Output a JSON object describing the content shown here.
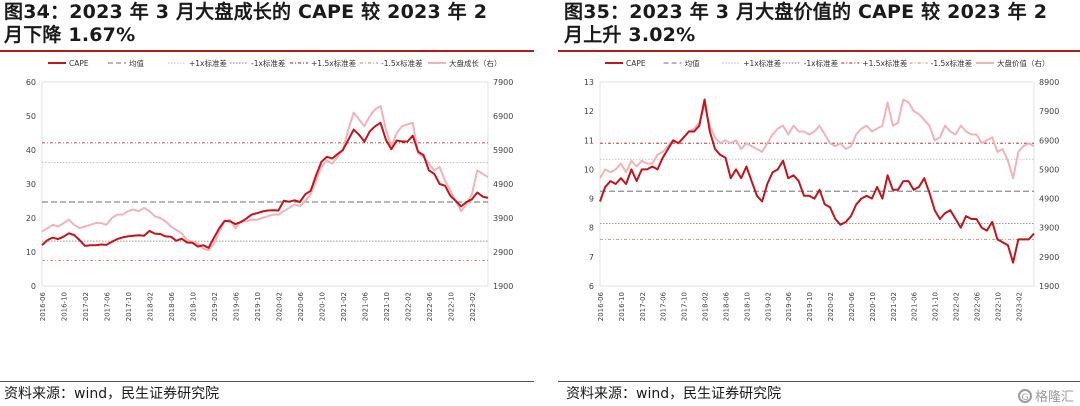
{
  "source_label": "资料来源：wind，民生证券研究院",
  "watermark": "格隆汇",
  "chart_data": [
    {
      "type": "line",
      "title": "图34：2023 年 3 月大盘成长的 CAPE 较 2023 年 2 月下降 1.67%",
      "legend": [
        "CAPE",
        "均值",
        "+1x标准差",
        "-1x标准差",
        "+1.5x标准差",
        "-1.5x标准差",
        "大盘成长（右）"
      ],
      "ylim_left": [
        0,
        60
      ],
      "ylim_right": [
        1900,
        7900
      ],
      "yticks_left": [
        "0",
        "10",
        "20",
        "30",
        "40",
        "50",
        "60"
      ],
      "yticks_right": [
        "1900",
        "2900",
        "3900",
        "4900",
        "5900",
        "6900",
        "7900"
      ],
      "x_tick_labels": [
        "2016-06",
        "2016-10",
        "2017-02",
        "2017-06",
        "2017-10",
        "2018-02",
        "2018-06",
        "2018-10",
        "2019-02",
        "2019-06",
        "2019-10",
        "2020-02",
        "2020-06",
        "2020-10",
        "2021-02",
        "2021-06",
        "2021-10",
        "2022-02",
        "2022-06",
        "2022-10",
        "2023-02"
      ],
      "x_start": "2016-06",
      "reference_lines": {
        "mean": 24.7,
        "plus_1sd": 36.3,
        "minus_1sd": 13.2,
        "plus_1_5sd": 42.1,
        "minus_1_5sd": 7.5
      },
      "series": [
        {
          "name": "CAPE",
          "axis": "left",
          "values": [
            12.0,
            13.5,
            14.2,
            13.8,
            14.5,
            15.5,
            15.0,
            13.5,
            11.8,
            12.0,
            12.0,
            12.2,
            12.1,
            13.0,
            13.8,
            14.3,
            14.6,
            14.8,
            14.9,
            14.8,
            16.2,
            15.4,
            15.3,
            14.6,
            14.5,
            13.3,
            13.9,
            12.8,
            12.7,
            11.6,
            12.0,
            11.2,
            14.2,
            17.0,
            19.2,
            19.0,
            18.2,
            18.8,
            19.8,
            21.0,
            21.4,
            21.9,
            22.2,
            22.3,
            22.2,
            25.1,
            24.8,
            25.2,
            24.7,
            27.0,
            28.0,
            32.5,
            36.5,
            38.0,
            37.5,
            38.8,
            40.0,
            43.0,
            46.0,
            44.5,
            42.5,
            45.5,
            47.0,
            48.0,
            43.0,
            40.2,
            42.8,
            42.5,
            42.5,
            44.2,
            39.5,
            38.5,
            34.0,
            33.0,
            30.0,
            29.5,
            26.5,
            25.0,
            23.4,
            24.7,
            25.5,
            27.5,
            26.3,
            25.9
          ]
        },
        {
          "name": "大盘成长（右）",
          "axis": "right",
          "values": [
            3500,
            3600,
            3700,
            3650,
            3750,
            3850,
            3700,
            3600,
            3650,
            3700,
            3750,
            3750,
            3700,
            3900,
            4000,
            4000,
            4100,
            4150,
            4100,
            4200,
            4100,
            3950,
            3900,
            3800,
            3650,
            3550,
            3450,
            3250,
            3200,
            3150,
            3000,
            2950,
            3150,
            3500,
            3800,
            3850,
            3600,
            3800,
            3800,
            3850,
            3850,
            3900,
            3950,
            4000,
            4000,
            4100,
            4200,
            4300,
            4250,
            4400,
            4600,
            5000,
            5400,
            5600,
            5500,
            5700,
            5900,
            6500,
            7000,
            6800,
            6600,
            6900,
            7100,
            7200,
            6500,
            6000,
            6400,
            6600,
            6650,
            6700,
            5800,
            5700,
            5500,
            5300,
            5400,
            5000,
            4700,
            4400,
            4100,
            4300,
            4600,
            5300,
            5200,
            5100
          ]
        }
      ]
    },
    {
      "type": "line",
      "title": "图35：2023 年 3 月大盘价值的 CAPE 较 2023 年 2 月上升 3.02%",
      "legend": [
        "CAPE",
        "均值",
        "+1x标准差",
        "-1x标准差",
        "+1.5x标准差",
        "-1.5x标准差",
        "大盘价值（右）"
      ],
      "ylim_left": [
        6,
        13
      ],
      "ylim_right": [
        1900,
        8900
      ],
      "yticks_left": [
        "6",
        "7",
        "8",
        "9",
        "10",
        "11",
        "12",
        "13"
      ],
      "yticks_right": [
        "1900",
        "2900",
        "3900",
        "4900",
        "5900",
        "6900",
        "7900",
        "8900"
      ],
      "x_tick_labels": [
        "2016-06",
        "2016-10",
        "2017-02",
        "2017-06",
        "2017-10",
        "2018-02",
        "2018-06",
        "2018-10",
        "2019-02",
        "2019-06",
        "2019-10",
        "2020-02",
        "2020-06",
        "2020-10",
        "2021-02",
        "2021-06",
        "2021-10",
        "2022-02",
        "2022-06",
        "2022-10",
        "2023-02"
      ],
      "x_start": "2016-06",
      "reference_lines": {
        "mean": 9.25,
        "plus_1sd": 10.35,
        "minus_1sd": 8.15,
        "plus_1_5sd": 10.9,
        "minus_1_5sd": 7.6
      },
      "series": [
        {
          "name": "CAPE",
          "axis": "left",
          "values": [
            8.9,
            9.4,
            9.6,
            9.5,
            9.7,
            9.5,
            10.0,
            9.6,
            10.0,
            10.0,
            10.1,
            10.0,
            10.4,
            10.7,
            11.0,
            10.9,
            11.1,
            11.3,
            11.3,
            11.5,
            12.4,
            11.3,
            10.7,
            10.5,
            10.4,
            9.7,
            10.0,
            9.7,
            10.1,
            9.6,
            9.1,
            8.9,
            9.5,
            9.9,
            10.0,
            10.3,
            9.7,
            9.8,
            9.6,
            9.1,
            9.1,
            9.0,
            9.3,
            8.8,
            8.7,
            8.3,
            8.1,
            8.2,
            8.4,
            8.8,
            9.0,
            9.1,
            9.0,
            9.4,
            9.0,
            9.8,
            9.3,
            9.3,
            9.6,
            9.6,
            9.3,
            9.4,
            9.7,
            9.2,
            8.6,
            8.3,
            8.5,
            8.6,
            8.3,
            8.0,
            8.4,
            8.3,
            8.3,
            8.0,
            7.9,
            8.2,
            7.6,
            7.5,
            7.4,
            6.8,
            7.6,
            7.6,
            7.6,
            7.8
          ]
        },
        {
          "name": "大盘价值（右）",
          "axis": "right",
          "values": [
            5600,
            5900,
            5800,
            5900,
            6100,
            5800,
            6200,
            6000,
            6200,
            6100,
            6100,
            6400,
            6500,
            6700,
            6900,
            6800,
            7000,
            7200,
            7300,
            7500,
            8100,
            7400,
            7000,
            6800,
            6900,
            6800,
            6900,
            6600,
            6800,
            6700,
            6600,
            6500,
            6800,
            7100,
            7300,
            7400,
            7100,
            7400,
            7200,
            7200,
            7100,
            7200,
            7400,
            7100,
            6800,
            6700,
            6800,
            6600,
            6700,
            7100,
            7300,
            7400,
            7200,
            7300,
            7400,
            8200,
            7400,
            7500,
            8300,
            8200,
            7900,
            7800,
            7600,
            7400,
            6900,
            7000,
            7400,
            7200,
            7100,
            7400,
            7200,
            7100,
            7100,
            6800,
            6900,
            7000,
            6500,
            6600,
            6200,
            5600,
            6500,
            6700,
            6800,
            6700
          ]
        }
      ]
    }
  ]
}
